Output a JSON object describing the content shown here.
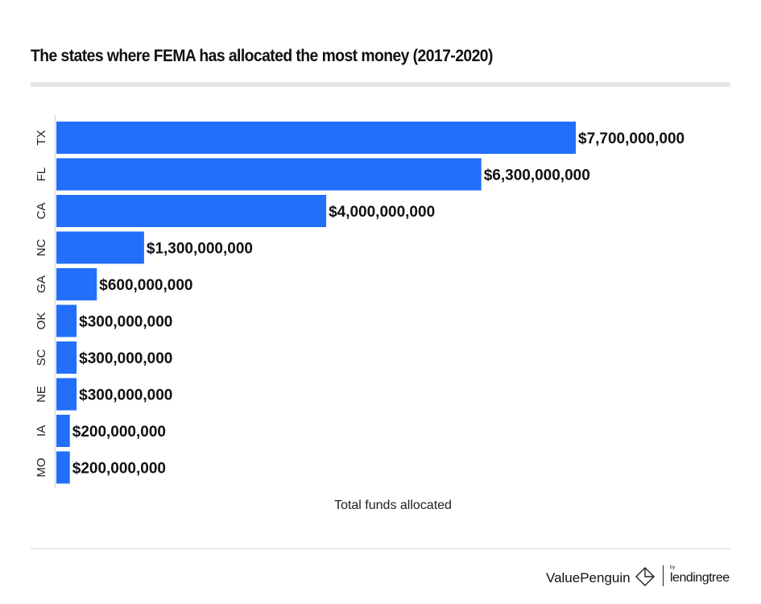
{
  "chart_data": {
    "type": "bar",
    "orientation": "horizontal",
    "title": "The states where FEMA has allocated the most money (2017-2020)",
    "xlabel": "Total funds allocated",
    "ylabel": "",
    "categories": [
      "TX",
      "FL",
      "CA",
      "NC",
      "GA",
      "OK",
      "SC",
      "NE",
      "IA",
      "MO"
    ],
    "values": [
      7700000000,
      6300000000,
      4000000000,
      1300000000,
      600000000,
      300000000,
      300000000,
      300000000,
      200000000,
      200000000
    ],
    "data_labels": [
      "$7,700,000,000",
      "$6,300,000,000",
      "$4,000,000,000",
      "$1,300,000,000",
      "$600,000,000",
      "$300,000,000",
      "$300,000,000",
      "$300,000,000",
      "$200,000,000",
      "$200,000,000"
    ],
    "xlim": [
      0,
      7700000000
    ],
    "grid": false,
    "bar_color": "#216ffa"
  },
  "footer": {
    "brand": "ValuePenguin",
    "partner_by": "by",
    "partner": "lendingtree"
  }
}
